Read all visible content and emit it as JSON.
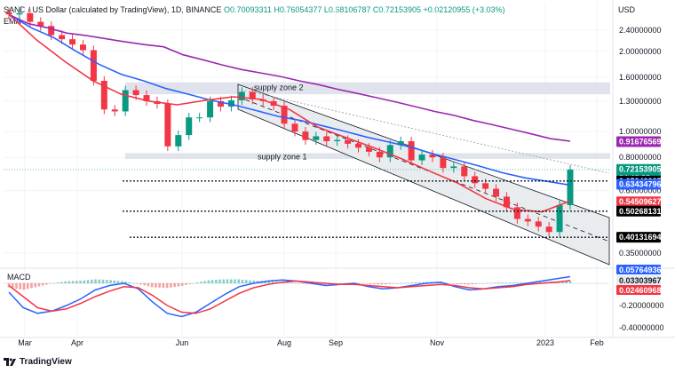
{
  "header": {
    "symbol": "SAND / US Dollar (calculated by TradingView), 1D, BINANCE",
    "ohlc": "O0.70093311 H0.76054377 L0.68106787 C0.72153905 +0.02120955 (+3.03%)",
    "indicator": "EMA",
    "currency": "USD"
  },
  "macd_label": "MACD",
  "brand": "TradingView",
  "colors": {
    "ema_purple": "#9c27b0",
    "ema_blue": "#2962ff",
    "ema_red": "#f23645",
    "up": "#089981",
    "down": "#f23645",
    "channel_fill": "#e9ecef",
    "zone_fill": "#e0e3eb"
  },
  "chart_data": {
    "type": "candlestick",
    "y_scale": "log",
    "price_ticks": [
      "2.40000000",
      "2.00000000",
      "1.60000000",
      "1.30000000",
      "1.00000000",
      "0.80000000",
      "0.60000000",
      "0.35000000"
    ],
    "price_tick_values": [
      2.4,
      2.0,
      1.6,
      1.3,
      1.0,
      0.8,
      0.6,
      0.35
    ],
    "x_labels": [
      "Mar",
      "Apr",
      "Jun",
      "Aug",
      "Sep",
      "Nov",
      "2023",
      "Feb"
    ],
    "annotations": [
      "supply zone 2",
      "supply zone 1"
    ],
    "price_tags": [
      {
        "label": "0.91676569",
        "value": 0.9168,
        "color": "#9c27b0"
      },
      {
        "label": "0.72153905",
        "value": 0.7215,
        "color": "#089981",
        "sub": "04:40:33"
      },
      {
        "label": "0.65243235",
        "value": 0.6524,
        "color": "#000000"
      },
      {
        "label": "0.63434796",
        "value": 0.6343,
        "color": "#2962ff"
      },
      {
        "label": "0.54509627",
        "value": 0.5451,
        "color": "#f23645"
      },
      {
        "label": "0.50268131",
        "value": 0.5027,
        "color": "#000000"
      },
      {
        "label": "0.40131694",
        "value": 0.4013,
        "color": "#000000"
      }
    ],
    "horizontal_levels": [
      0.6524,
      0.5027,
      0.4013
    ],
    "closes": [
      2.75,
      2.78,
      2.58,
      2.49,
      2.3,
      2.22,
      2.12,
      2.02,
      1.55,
      1.21,
      1.19,
      1.43,
      1.37,
      1.3,
      1.27,
      0.88,
      0.97,
      1.13,
      1.13,
      1.3,
      1.24,
      1.31,
      1.41,
      1.32,
      1.3,
      1.25,
      1.07,
      1.0,
      0.93,
      0.96,
      0.92,
      0.93,
      0.9,
      0.87,
      0.84,
      0.8,
      0.89,
      0.92,
      0.78,
      0.82,
      0.8,
      0.73,
      0.74,
      0.68,
      0.64,
      0.61,
      0.57,
      0.52,
      0.47,
      0.46,
      0.44,
      0.42,
      0.53,
      0.72
    ],
    "series": [
      {
        "name": "EMA (purple)",
        "values": [
          2.75,
          2.54,
          2.45,
          2.34,
          2.29,
          2.23,
          2.17,
          2.12,
          2.08,
          1.94,
          1.86,
          1.78,
          1.71,
          1.66,
          1.61,
          1.55,
          1.5,
          1.44,
          1.39,
          1.34,
          1.29,
          1.24,
          1.19,
          1.15,
          1.1,
          1.06,
          1.02,
          0.98,
          0.94,
          0.92
        ]
      },
      {
        "name": "EMA (blue)",
        "values": [
          2.75,
          2.45,
          2.25,
          2.0,
          1.79,
          1.64,
          1.55,
          1.45,
          1.38,
          1.31,
          1.26,
          1.2,
          1.14,
          1.1,
          1.05,
          1.0,
          0.95,
          0.91,
          0.87,
          0.82,
          0.78,
          0.74,
          0.7,
          0.67,
          0.65,
          0.63
        ]
      },
      {
        "name": "EMA (red)",
        "values": [
          2.75,
          2.2,
          1.83,
          1.55,
          1.38,
          1.3,
          1.26,
          1.31,
          1.35,
          1.32,
          1.21,
          1.04,
          0.95,
          0.87,
          0.79,
          0.71,
          0.64,
          0.56,
          0.51,
          0.5,
          0.55
        ]
      }
    ],
    "macd_ticks": [
      "0.05764936",
      "0.03303967",
      "0.02460968",
      "-0.20000000",
      "-0.40000000"
    ],
    "macd_tick_values": [
      0.0576,
      0.033,
      0.0246,
      -0.2,
      -0.4
    ]
  }
}
